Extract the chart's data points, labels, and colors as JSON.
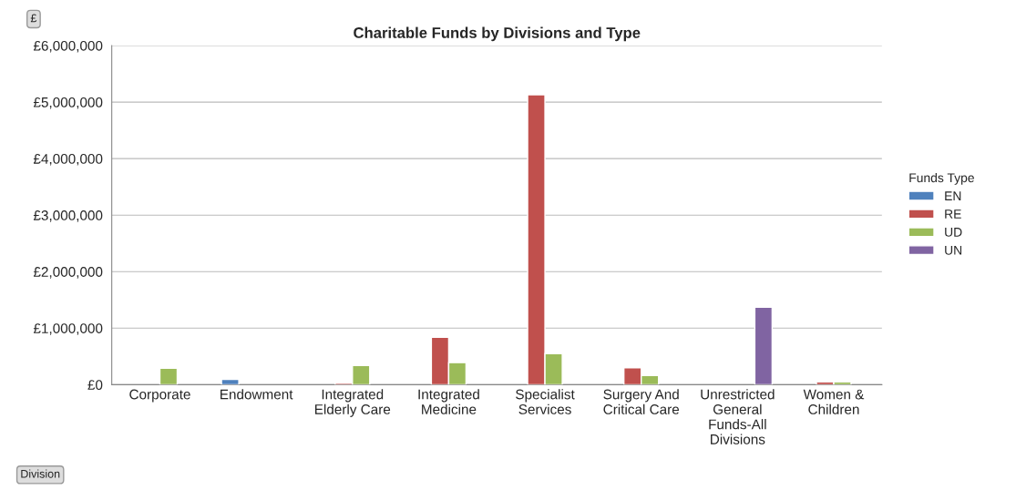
{
  "chart_data": {
    "type": "bar",
    "title": "Charitable Funds by Divisions and Type",
    "xlabel": "Division",
    "ylabel": "£",
    "legend_title": "Funds Type",
    "categories": [
      "Corporate",
      "Endowment",
      "Integrated\nElderly Care",
      "Integrated\nMedicine",
      "Specialist\nServices",
      "Surgery And\nCritical Care",
      "Unrestricted\nGeneral\nFunds-All\nDivisions",
      "Women &\nChildren"
    ],
    "series": [
      {
        "name": "EN",
        "color": "#4f81bd",
        "values": [
          null,
          95000,
          null,
          null,
          null,
          null,
          null,
          null
        ]
      },
      {
        "name": "RE",
        "color": "#c0504d",
        "values": [
          null,
          null,
          30000,
          840000,
          5130000,
          300000,
          null,
          50000
        ]
      },
      {
        "name": "UD",
        "color": "#9bbb59",
        "values": [
          290000,
          null,
          340000,
          390000,
          550000,
          160000,
          null,
          50000
        ]
      },
      {
        "name": "UN",
        "color": "#8064a2",
        "values": [
          null,
          null,
          null,
          null,
          null,
          null,
          1370000,
          null
        ]
      }
    ],
    "ylim": [
      0,
      6000000
    ],
    "yticks": [
      {
        "value": 0,
        "label": "£0"
      },
      {
        "value": 1000000,
        "label": "£1,000,000"
      },
      {
        "value": 2000000,
        "label": "£2,000,000"
      },
      {
        "value": 3000000,
        "label": "£3,000,000"
      },
      {
        "value": 4000000,
        "label": "£4,000,000"
      },
      {
        "value": 5000000,
        "label": "£5,000,000"
      },
      {
        "value": 6000000,
        "label": "£6,000,000"
      }
    ],
    "grid": "y",
    "legend": "right"
  }
}
